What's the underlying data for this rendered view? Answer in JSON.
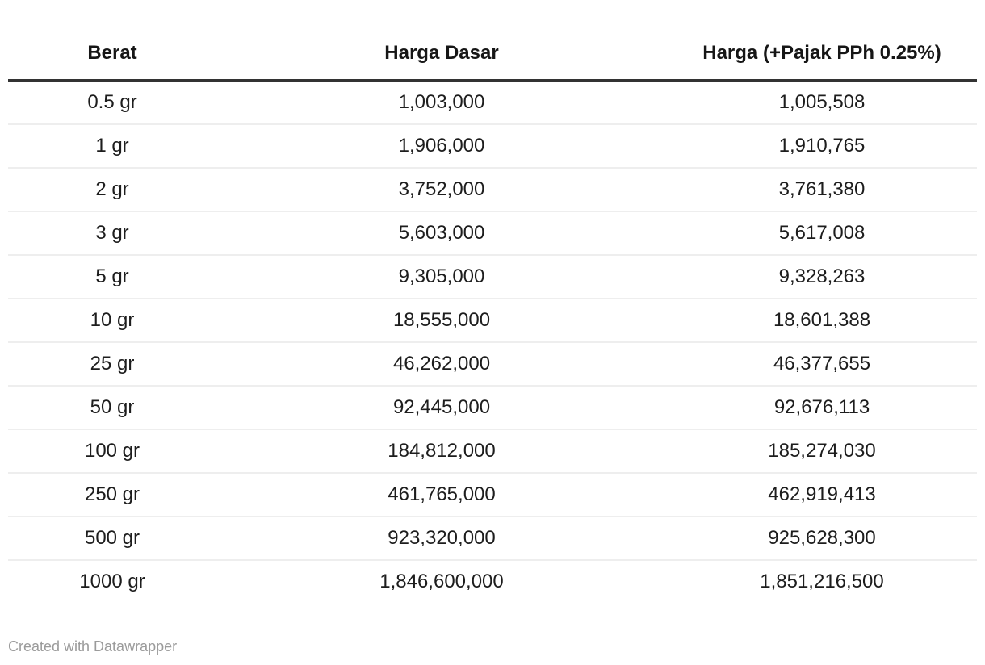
{
  "table": {
    "columns": [
      "Berat",
      "Harga Dasar",
      "Harga (+Pajak PPh 0.25%)"
    ],
    "rows": [
      [
        "0.5 gr",
        "1,003,000",
        "1,005,508"
      ],
      [
        "1 gr",
        "1,906,000",
        "1,910,765"
      ],
      [
        "2 gr",
        "3,752,000",
        "3,761,380"
      ],
      [
        "3 gr",
        "5,603,000",
        "5,617,008"
      ],
      [
        "5 gr",
        "9,305,000",
        "9,328,263"
      ],
      [
        "10 gr",
        "18,555,000",
        "18,601,388"
      ],
      [
        "25 gr",
        "46,262,000",
        "46,377,655"
      ],
      [
        "50 gr",
        "92,445,000",
        "92,676,113"
      ],
      [
        "100 gr",
        "184,812,000",
        "185,274,030"
      ],
      [
        "250 gr",
        "461,765,000",
        "462,919,413"
      ],
      [
        "500 gr",
        "923,320,000",
        "925,628,300"
      ],
      [
        "1000 gr",
        "1,846,600,000",
        "1,851,216,500"
      ]
    ]
  },
  "footer": {
    "credit": "Created with Datawrapper"
  },
  "colors": {
    "background": "#ffffff",
    "body_text": "#1d1d1d",
    "header_text": "#161616",
    "header_rule": "#333333",
    "row_divider": "#eeeeee",
    "credit_text": "#9b9b9b"
  },
  "chart_data": {
    "type": "table",
    "title": "",
    "categories": [
      "0.5 gr",
      "1 gr",
      "2 gr",
      "3 gr",
      "5 gr",
      "10 gr",
      "25 gr",
      "50 gr",
      "100 gr",
      "250 gr",
      "500 gr",
      "1000 gr"
    ],
    "series": [
      {
        "name": "Harga Dasar",
        "values": [
          1003000,
          1906000,
          3752000,
          5603000,
          9305000,
          18555000,
          46262000,
          92445000,
          184812000,
          461765000,
          923320000,
          1846600000
        ]
      },
      {
        "name": "Harga (+Pajak PPh 0.25%)",
        "values": [
          1005508,
          1910765,
          3761380,
          5617008,
          9328263,
          18601388,
          46377655,
          92676113,
          185274030,
          462919413,
          925628300,
          1851216500
        ]
      }
    ],
    "legend_position": "none",
    "grid": "horizontal-row-dividers"
  }
}
